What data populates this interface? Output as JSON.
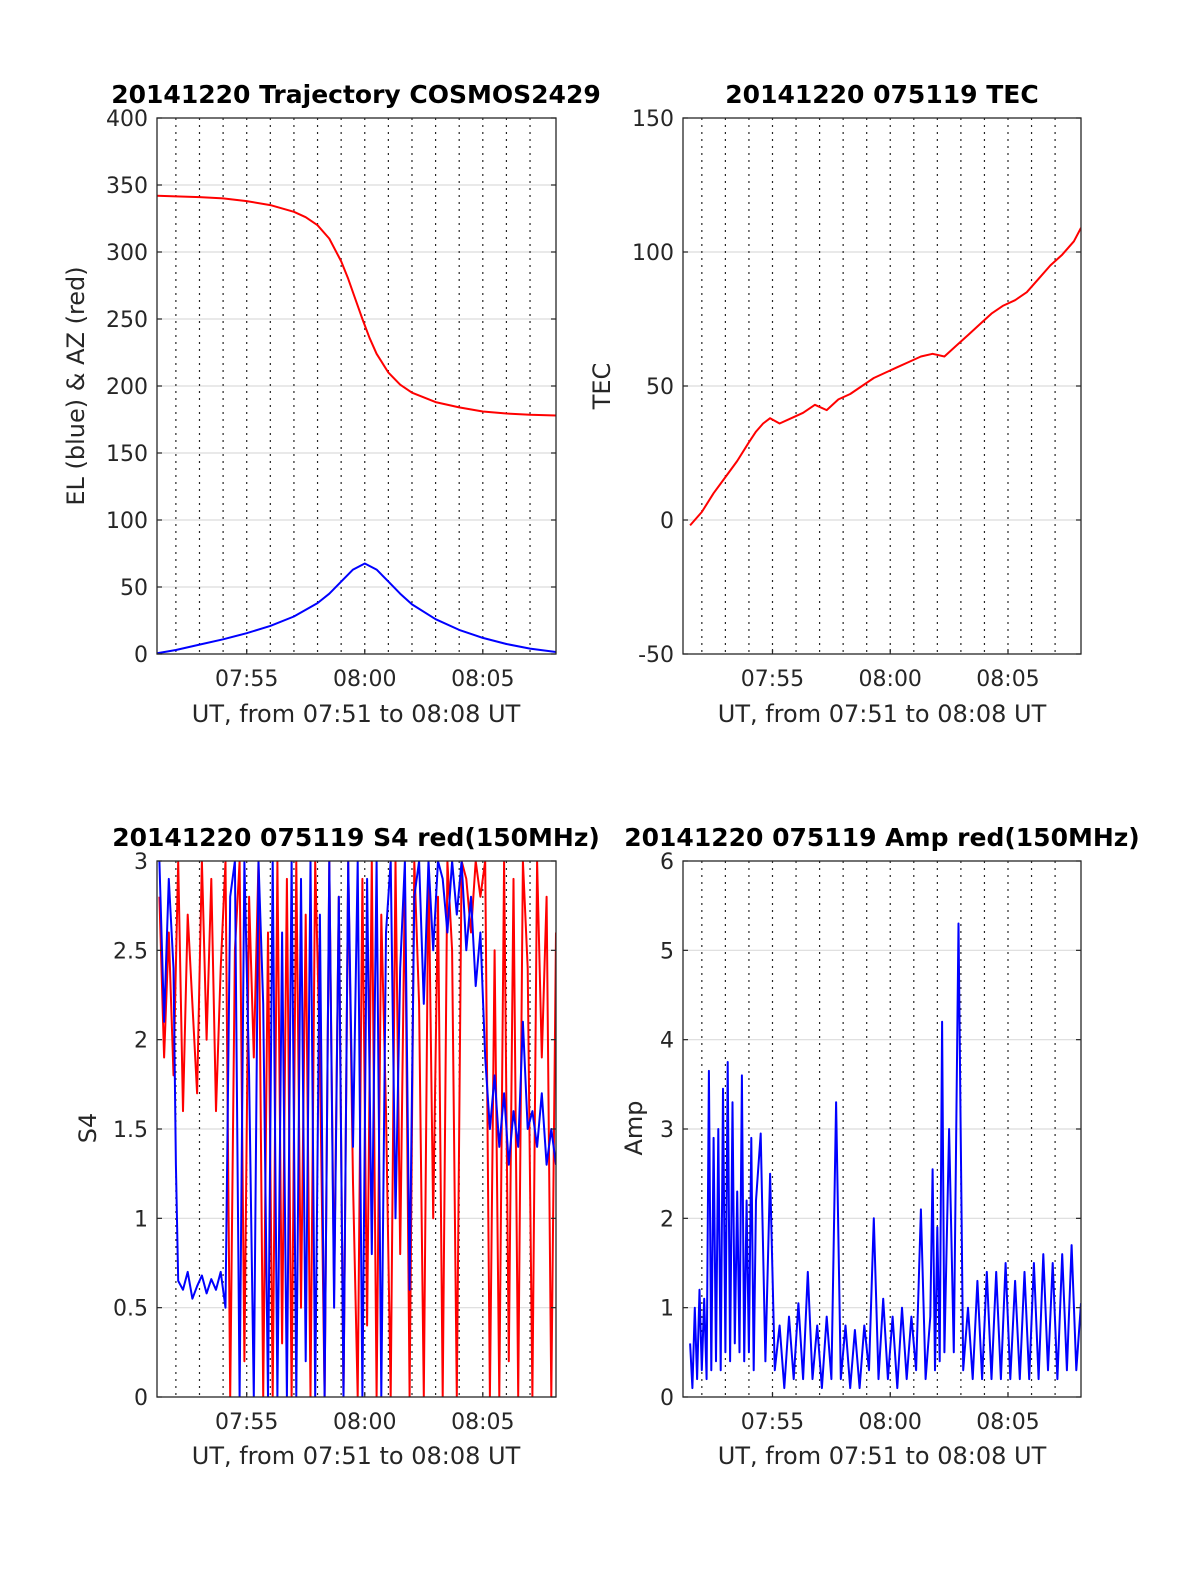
{
  "chart_data": [
    {
      "id": "trajectory",
      "type": "line",
      "title": "20141220 Trajectory COSMOS2429",
      "xlabel": "UT, from 07:51 to 08:08 UT",
      "ylabel": "EL (blue) & AZ (red)",
      "xlim": [
        471.2,
        488.1
      ],
      "ylim": [
        0,
        400
      ],
      "yticks": [
        0,
        50,
        100,
        150,
        200,
        250,
        300,
        350,
        400
      ],
      "xticks": [
        {
          "v": 475,
          "label": "07:55"
        },
        {
          "v": 480,
          "label": "08:00"
        },
        {
          "v": 485,
          "label": "08:05"
        }
      ],
      "vgrid": [
        472,
        473,
        474,
        475,
        476,
        477,
        478,
        479,
        480,
        481,
        482,
        483,
        484,
        485,
        486,
        487
      ],
      "hgrid": [
        50,
        100,
        150,
        200,
        250,
        300,
        350
      ],
      "series": [
        {
          "color": "#ff0000",
          "x": [
            471.2,
            472,
            473,
            474,
            475,
            476,
            477,
            477.5,
            478,
            478.5,
            479,
            479.3,
            479.6,
            479.9,
            480.2,
            480.5,
            481,
            481.5,
            482,
            483,
            484,
            485,
            486,
            487,
            488.1
          ],
          "y": [
            342,
            341.5,
            341,
            340,
            338,
            335,
            330,
            326,
            320,
            310,
            293,
            280,
            265,
            250,
            236,
            224,
            210,
            201,
            195,
            188,
            184,
            181,
            179.5,
            178.5,
            178
          ]
        },
        {
          "color": "#0000ff",
          "x": [
            471.2,
            472,
            473,
            474,
            475,
            476,
            477,
            478,
            478.5,
            479,
            479.5,
            480,
            480.5,
            481,
            481.5,
            482,
            483,
            484,
            485,
            486,
            487,
            488.1
          ],
          "y": [
            0.5,
            3,
            7,
            11,
            15.5,
            21,
            28,
            38,
            45,
            54,
            63,
            67.5,
            63,
            54,
            45,
            37,
            26,
            18,
            12,
            7.5,
            4,
            1.5
          ]
        }
      ]
    },
    {
      "id": "tec",
      "type": "line",
      "title": "20141220 075119 TEC",
      "xlabel": "UT, from 07:51 to 08:08 UT",
      "ylabel": "TEC",
      "xlim": [
        471.2,
        488.1
      ],
      "ylim": [
        -50,
        150
      ],
      "yticks": [
        -50,
        0,
        50,
        100,
        150
      ],
      "xticks": [
        {
          "v": 475,
          "label": "07:55"
        },
        {
          "v": 480,
          "label": "08:00"
        },
        {
          "v": 485,
          "label": "08:05"
        }
      ],
      "vgrid": [
        472,
        473,
        474,
        475,
        476,
        477,
        478,
        479,
        480,
        481,
        482,
        483,
        484,
        485,
        486,
        487
      ],
      "hgrid": [
        0,
        50,
        100
      ],
      "series": [
        {
          "color": "#ff0000",
          "x": [
            471.5,
            472,
            472.5,
            473,
            473.5,
            474,
            474.3,
            474.6,
            474.9,
            475.3,
            475.8,
            476.3,
            476.8,
            477.3,
            477.8,
            478.3,
            478.8,
            479.3,
            479.8,
            480.3,
            480.8,
            481.3,
            481.8,
            482.3,
            482.8,
            483.3,
            483.8,
            484.3,
            484.8,
            485.3,
            485.8,
            486.3,
            486.8,
            487.3,
            487.8,
            488.1
          ],
          "y": [
            -2,
            3,
            10,
            16,
            22,
            29,
            33,
            36,
            38,
            36,
            38,
            40,
            43,
            41,
            45,
            47,
            50,
            53,
            55,
            57,
            59,
            61,
            62,
            61,
            65,
            69,
            73,
            77,
            80,
            82,
            85,
            90,
            95,
            99,
            104,
            109
          ]
        }
      ]
    },
    {
      "id": "s4",
      "type": "line",
      "title": "20141220 075119 S4 red(150MHz)",
      "xlabel": "UT, from 07:51 to 08:08 UT",
      "ylabel": "S4",
      "xlim": [
        471.2,
        488.1
      ],
      "ylim": [
        0,
        3
      ],
      "yticks": [
        0,
        0.5,
        1,
        1.5,
        2,
        2.5,
        3
      ],
      "ytick_labels": [
        "0",
        "0.5",
        "1",
        "1.5",
        "2",
        "2.5",
        "3"
      ],
      "xticks": [
        {
          "v": 475,
          "label": "07:55"
        },
        {
          "v": 480,
          "label": "08:00"
        },
        {
          "v": 485,
          "label": "08:05"
        }
      ],
      "vgrid": [
        472,
        473,
        474,
        475,
        476,
        477,
        478,
        479,
        480,
        481,
        482,
        483,
        484,
        485,
        486,
        487
      ],
      "hgrid": [
        0.5,
        1,
        1.5,
        2,
        2.5
      ],
      "series": [
        {
          "color": "#ff0000",
          "x": [
            471.3,
            471.5,
            471.7,
            471.9,
            472.1,
            472.3,
            472.5,
            472.7,
            472.9,
            473.1,
            473.3,
            473.5,
            473.7,
            473.9,
            474.1,
            474.3,
            474.5,
            474.7,
            474.9,
            475.1,
            475.3,
            475.5,
            475.7,
            475.9,
            476.1,
            476.3,
            476.5,
            476.7,
            476.9,
            477.1,
            477.3,
            477.5,
            477.7,
            477.9,
            478.1,
            478.3,
            478.5,
            478.7,
            478.9,
            479.1,
            479.3,
            479.5,
            479.7,
            479.9,
            480.1,
            480.3,
            480.5,
            480.7,
            480.9,
            481.1,
            481.3,
            481.5,
            481.7,
            481.9,
            482.1,
            482.3,
            482.5,
            482.7,
            482.9,
            483.1,
            483.3,
            483.5,
            483.7,
            483.9,
            484.1,
            484.3,
            484.5,
            484.7,
            484.9,
            485.1,
            485.3,
            485.5,
            485.7,
            485.9,
            486.1,
            486.3,
            486.5,
            486.7,
            486.9,
            487.1,
            487.3,
            487.5,
            487.7,
            487.9,
            488.1
          ],
          "y": [
            2.8,
            1.9,
            2.6,
            1.8,
            3,
            1.6,
            2.7,
            2.2,
            1.7,
            3,
            2.0,
            2.9,
            1.6,
            2.4,
            3,
            0,
            2.5,
            3,
            0.2,
            2.8,
            1.9,
            3,
            0,
            2.6,
            0,
            3,
            0.3,
            2.9,
            0,
            3,
            0.5,
            2.7,
            0,
            3,
            1.9,
            0,
            3,
            0.6,
            2.8,
            0,
            3,
            1.2,
            0,
            2.9,
            0.4,
            3,
            0,
            2.7,
            1.6,
            0,
            3,
            0.8,
            2.9,
            0,
            3,
            2.2,
            0,
            3,
            1.0,
            2.8,
            0,
            3,
            2.5,
            0,
            3,
            2.9,
            2.6,
            3,
            2.8,
            3,
            0,
            2.5,
            0,
            3,
            0.2,
            2.9,
            0,
            3,
            2.4,
            0,
            3,
            1.9,
            2.8,
            0,
            2.6
          ]
        },
        {
          "color": "#0000ff",
          "x": [
            471.3,
            471.5,
            471.7,
            471.9,
            472.0,
            472.1,
            472.3,
            472.5,
            472.7,
            472.9,
            473.1,
            473.3,
            473.5,
            473.7,
            473.9,
            474.1,
            474.3,
            474.5,
            474.7,
            474.9,
            475.1,
            475.3,
            475.5,
            475.7,
            475.9,
            476.1,
            476.3,
            476.5,
            476.7,
            476.9,
            477.1,
            477.3,
            477.5,
            477.7,
            477.9,
            478.1,
            478.3,
            478.5,
            478.7,
            478.9,
            479.1,
            479.3,
            479.5,
            479.7,
            479.9,
            480.1,
            480.3,
            480.5,
            480.7,
            480.9,
            481.1,
            481.3,
            481.5,
            481.7,
            481.9,
            482.1,
            482.3,
            482.5,
            482.7,
            482.9,
            483.1,
            483.3,
            483.5,
            483.7,
            483.9,
            484.1,
            484.3,
            484.5,
            484.7,
            484.9,
            485.1,
            485.3,
            485.5,
            485.7,
            485.9,
            486.1,
            486.3,
            486.5,
            486.7,
            486.9,
            487.1,
            487.3,
            487.5,
            487.7,
            487.9,
            488.1
          ],
          "y": [
            3,
            2.1,
            2.9,
            2.4,
            1.3,
            0.65,
            0.6,
            0.7,
            0.55,
            0.62,
            0.68,
            0.58,
            0.66,
            0.6,
            0.7,
            0.5,
            2.8,
            3,
            0,
            3,
            1.8,
            0,
            3,
            2.2,
            0,
            3,
            0,
            2.6,
            0,
            3,
            0,
            2.9,
            0.2,
            3,
            0,
            2.7,
            0,
            3,
            0.5,
            2.8,
            0,
            3,
            1.4,
            3,
            0,
            2.9,
            0.8,
            3,
            0,
            2.6,
            3,
            1.0,
            2.4,
            3,
            0.6,
            2.8,
            3,
            2.2,
            3,
            2.5,
            3,
            2.9,
            2.6,
            3,
            2.7,
            3,
            2.5,
            2.8,
            2.3,
            2.6,
            1.9,
            1.5,
            1.8,
            1.4,
            1.7,
            1.3,
            1.6,
            1.4,
            2.1,
            1.5,
            1.6,
            1.4,
            1.7,
            1.3,
            1.5,
            1.3
          ]
        }
      ]
    },
    {
      "id": "amp",
      "type": "line",
      "title": "20141220 075119 Amp red(150MHz)",
      "xlabel": "UT, from 07:51 to 08:08 UT",
      "ylabel": "Amp",
      "xlim": [
        471.2,
        488.1
      ],
      "ylim": [
        0,
        6
      ],
      "yticks": [
        0,
        1,
        2,
        3,
        4,
        5,
        6
      ],
      "xticks": [
        {
          "v": 475,
          "label": "07:55"
        },
        {
          "v": 480,
          "label": "08:00"
        },
        {
          "v": 485,
          "label": "08:05"
        }
      ],
      "vgrid": [
        472,
        473,
        474,
        475,
        476,
        477,
        478,
        479,
        480,
        481,
        482,
        483,
        484,
        485,
        486,
        487
      ],
      "hgrid": [
        1,
        2,
        3,
        4,
        5
      ],
      "series": [
        {
          "color": "#0000ff",
          "x": [
            471.5,
            471.6,
            471.7,
            471.8,
            471.9,
            472.0,
            472.1,
            472.2,
            472.3,
            472.4,
            472.5,
            472.6,
            472.7,
            472.8,
            472.9,
            473.0,
            473.1,
            473.2,
            473.3,
            473.4,
            473.5,
            473.6,
            473.7,
            473.8,
            473.9,
            474.0,
            474.1,
            474.2,
            474.3,
            474.5,
            474.7,
            474.9,
            475.1,
            475.3,
            475.5,
            475.7,
            475.9,
            476.1,
            476.3,
            476.5,
            476.7,
            476.9,
            477.1,
            477.3,
            477.5,
            477.7,
            477.9,
            478.1,
            478.3,
            478.5,
            478.7,
            478.9,
            479.1,
            479.3,
            479.5,
            479.7,
            479.9,
            480.1,
            480.3,
            480.5,
            480.7,
            480.9,
            481.1,
            481.3,
            481.5,
            481.7,
            481.8,
            481.9,
            482.0,
            482.1,
            482.2,
            482.3,
            482.5,
            482.7,
            482.9,
            483.1,
            483.3,
            483.5,
            483.7,
            483.9,
            484.1,
            484.3,
            484.5,
            484.7,
            484.9,
            485.1,
            485.3,
            485.5,
            485.7,
            485.9,
            486.1,
            486.3,
            486.5,
            486.7,
            486.9,
            487.1,
            487.3,
            487.5,
            487.7,
            487.9,
            488.1
          ],
          "y": [
            0.6,
            0.1,
            1.0,
            0.2,
            1.2,
            0.3,
            1.1,
            0.2,
            3.65,
            0.3,
            2.9,
            0.4,
            3.0,
            0.3,
            3.45,
            0.5,
            3.75,
            0.4,
            3.3,
            0.6,
            2.3,
            0.5,
            3.6,
            0.4,
            2.2,
            0.5,
            2.9,
            0.3,
            2.2,
            2.95,
            0.4,
            2.5,
            0.3,
            0.8,
            0.1,
            0.9,
            0.2,
            1.05,
            0.2,
            1.4,
            0.2,
            0.8,
            0.1,
            0.9,
            0.2,
            3.3,
            0.2,
            0.8,
            0.1,
            0.75,
            0.1,
            0.8,
            0.3,
            2.0,
            0.2,
            1.1,
            0.2,
            0.9,
            0.1,
            1.0,
            0.2,
            0.9,
            0.3,
            2.1,
            0.2,
            0.9,
            2.55,
            0.3,
            1.9,
            0.4,
            4.2,
            0.5,
            3.0,
            0.5,
            5.3,
            0.3,
            1.0,
            0.2,
            1.3,
            0.2,
            1.4,
            0.2,
            1.4,
            0.2,
            1.5,
            0.2,
            1.3,
            0.2,
            1.4,
            0.2,
            1.5,
            0.2,
            1.6,
            0.3,
            1.5,
            0.2,
            1.6,
            0.3,
            1.7,
            0.3,
            1.05
          ]
        }
      ]
    }
  ]
}
